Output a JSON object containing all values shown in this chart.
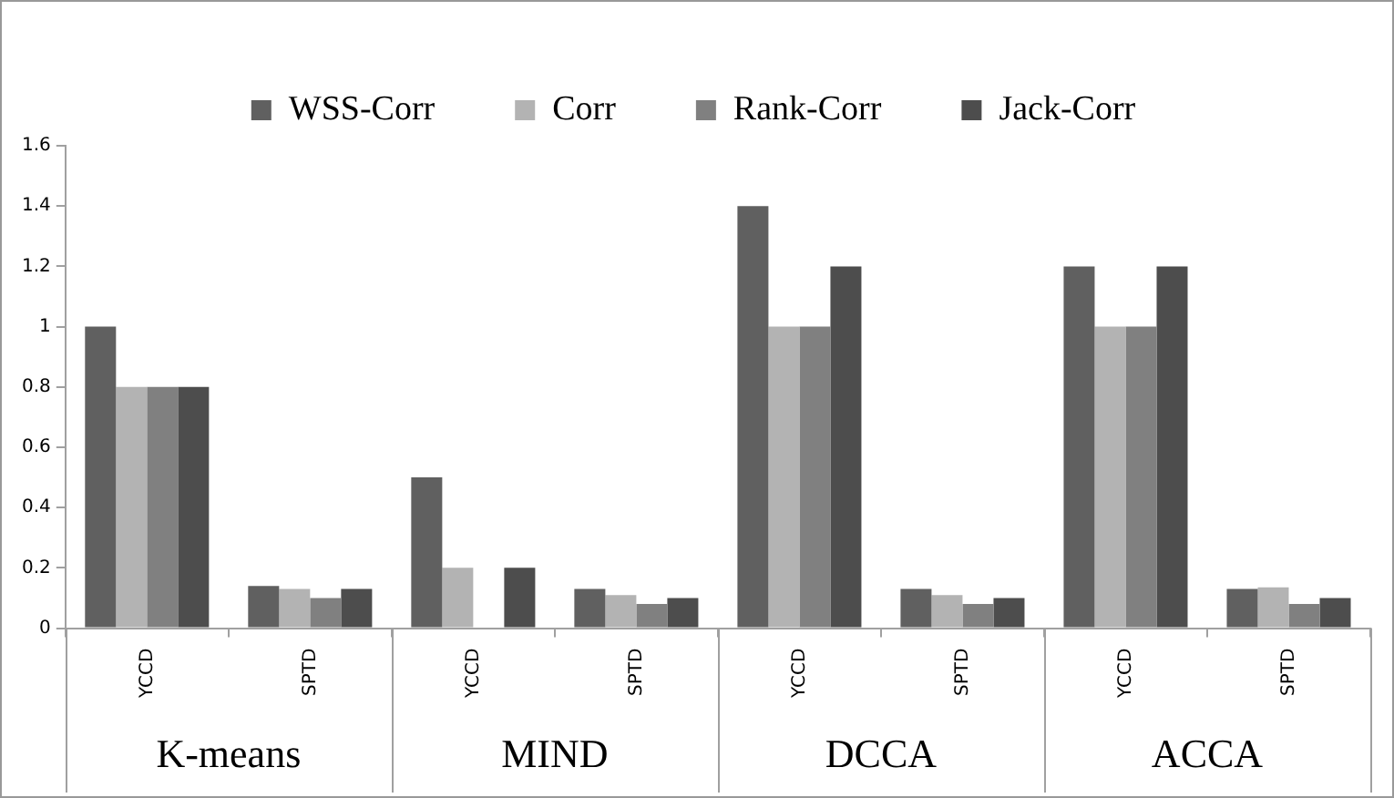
{
  "chart_data": {
    "type": "bar",
    "categories": [
      "YCCD",
      "SPTD",
      "YCCD",
      "SPTD",
      "YCCD",
      "SPTD",
      "YCCD",
      "SPTD"
    ],
    "series": [
      {
        "name": "WSS-Corr",
        "color": "#606060",
        "values": [
          1,
          0.14,
          0.5,
          0.13,
          1.4,
          0.13,
          1.2,
          0.13
        ]
      },
      {
        "name": "Corr",
        "color": "#b3b3b3",
        "values": [
          0.8,
          0.13,
          0.2,
          0.11,
          1,
          0.11,
          1,
          0.135
        ]
      },
      {
        "name": "Rank-Corr",
        "color": "#808080",
        "values": [
          0.8,
          0.1,
          null,
          0.08,
          1,
          0.08,
          1,
          0.08
        ]
      },
      {
        "name": "Jack-Corr",
        "color": "#4d4d4d",
        "values": [
          0.8,
          0.13,
          0.2,
          0.1,
          1.2,
          0.1,
          1.2,
          0.1
        ]
      }
    ],
    "annotations": [
      "K-means",
      "MIND",
      "DCCA",
      "ACCA"
    ],
    "ylim": [
      0,
      1.6
    ],
    "yticks": [
      0,
      0.2,
      0.4,
      0.6,
      0.8,
      1,
      1.2,
      1.4,
      1.6
    ],
    "grid": false,
    "legend": "top"
  }
}
